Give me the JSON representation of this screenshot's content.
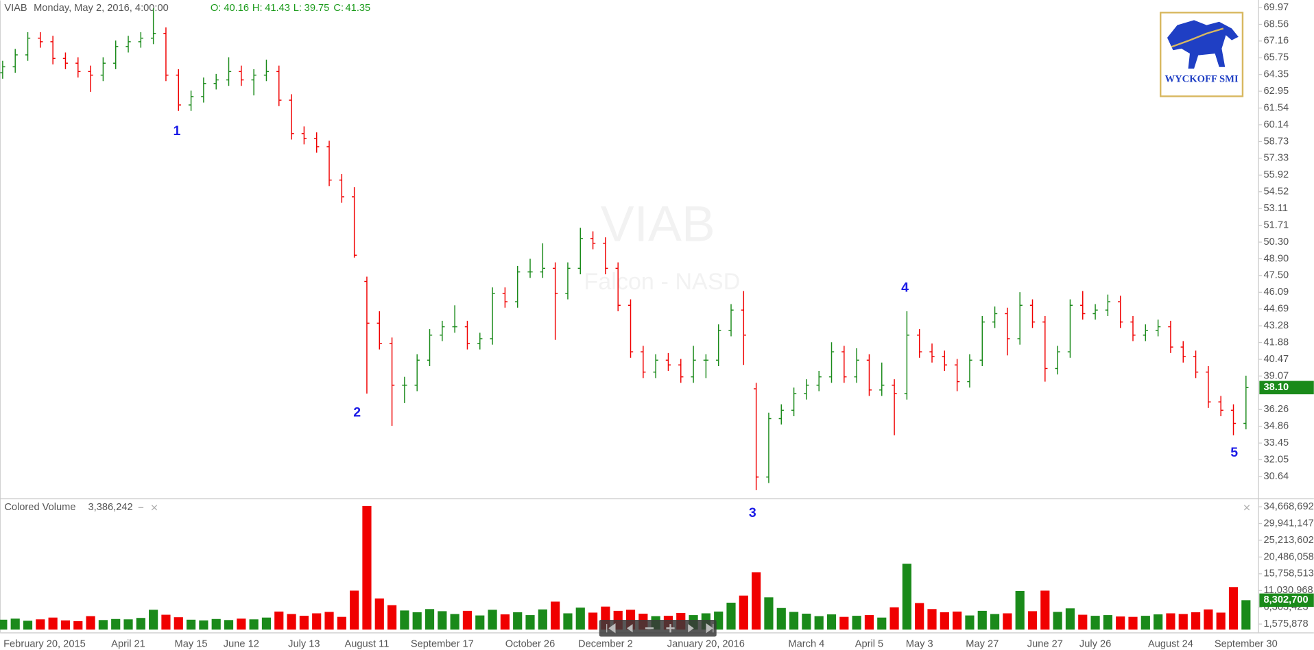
{
  "header": {
    "symbol": "VIAB",
    "datetime": "Monday, May 2, 2016, 4:00:00",
    "o_label": "O:",
    "open": 40.16,
    "h_label": "H:",
    "high": 41.43,
    "l_label": "L:",
    "low": 39.75,
    "c_label": "C:",
    "close": 41.35
  },
  "logo": {
    "text": "WYCKOFF SMI"
  },
  "chart_data": [
    {
      "type": "ohlc",
      "watermark": "VIAB",
      "watermark_sub": "Falcon - NASD",
      "up_color": "#1a8a1a",
      "down_color": "#f00000",
      "categories": [
        "February 20, 2015",
        null,
        null,
        null,
        null,
        null,
        null,
        null,
        null,
        null,
        "April 21",
        null,
        null,
        null,
        null,
        "May 15",
        null,
        null,
        null,
        "June 12",
        null,
        null,
        null,
        null,
        "July 13",
        null,
        null,
        null,
        null,
        "August 11",
        null,
        null,
        null,
        null,
        null,
        "September 17",
        null,
        null,
        null,
        null,
        null,
        null,
        "October 26",
        null,
        null,
        null,
        null,
        null,
        "December 2",
        null,
        null,
        null,
        null,
        null,
        null,
        null,
        "January 20, 2016",
        null,
        null,
        null,
        null,
        null,
        null,
        null,
        "March 4",
        null,
        null,
        null,
        null,
        "April 5",
        null,
        null,
        null,
        "May 3",
        null,
        null,
        null,
        null,
        "May 27",
        null,
        null,
        null,
        null,
        "June 27",
        null,
        null,
        null,
        "July 26",
        null,
        null,
        null,
        null,
        null,
        "August 24",
        null,
        null,
        null,
        null,
        null,
        "September 30"
      ],
      "ohlc": [
        [
          64.5,
          65.5,
          64.0,
          65.0
        ],
        [
          65.0,
          66.5,
          64.5,
          66.0
        ],
        [
          66.0,
          67.9,
          65.5,
          67.4
        ],
        [
          67.4,
          67.9,
          66.6,
          67.1
        ],
        [
          67.1,
          67.6,
          65.2,
          65.7
        ],
        [
          65.7,
          66.2,
          64.8,
          65.3
        ],
        [
          65.3,
          65.8,
          64.1,
          64.6
        ],
        [
          64.6,
          65.1,
          62.9,
          64.3
        ],
        [
          64.3,
          65.8,
          63.8,
          65.3
        ],
        [
          65.3,
          67.2,
          64.8,
          66.7
        ],
        [
          66.7,
          67.6,
          66.2,
          67.1
        ],
        [
          67.1,
          67.9,
          66.6,
          67.4
        ],
        [
          67.4,
          69.9,
          66.9,
          67.8
        ],
        [
          67.8,
          68.3,
          63.8,
          64.3
        ],
        [
          64.3,
          64.8,
          61.3,
          61.8
        ],
        [
          61.8,
          63.0,
          61.3,
          62.5
        ],
        [
          62.5,
          64.1,
          62.0,
          63.6
        ],
        [
          63.6,
          64.4,
          63.1,
          63.9
        ],
        [
          63.9,
          65.8,
          63.4,
          64.6
        ],
        [
          64.6,
          65.1,
          63.4,
          63.9
        ],
        [
          63.9,
          64.8,
          62.6,
          64.3
        ],
        [
          64.3,
          65.6,
          63.8,
          64.6
        ],
        [
          64.6,
          65.1,
          61.7,
          62.2
        ],
        [
          62.2,
          62.7,
          58.9,
          59.4
        ],
        [
          59.4,
          60.0,
          58.5,
          59.0
        ],
        [
          59.0,
          59.5,
          57.8,
          58.3
        ],
        [
          58.3,
          58.8,
          55.0,
          55.5
        ],
        [
          55.5,
          56.0,
          53.6,
          54.1
        ],
        [
          54.1,
          54.9,
          49.0,
          49.2
        ],
        [
          47.0,
          47.4,
          37.6,
          43.5
        ],
        [
          43.5,
          44.5,
          41.3,
          41.8
        ],
        [
          41.8,
          42.3,
          34.9,
          38.3
        ],
        [
          38.3,
          39.0,
          36.8,
          38.3
        ],
        [
          38.3,
          40.9,
          37.8,
          40.4
        ],
        [
          40.4,
          43.0,
          39.9,
          42.5
        ],
        [
          42.5,
          43.7,
          42.0,
          43.2
        ],
        [
          43.2,
          45.0,
          42.7,
          43.2
        ],
        [
          43.2,
          43.7,
          41.3,
          41.8
        ],
        [
          41.8,
          42.7,
          41.3,
          42.2
        ],
        [
          42.2,
          46.5,
          41.7,
          46.0
        ],
        [
          46.0,
          46.5,
          44.8,
          45.3
        ],
        [
          45.3,
          48.3,
          44.8,
          47.8
        ],
        [
          47.8,
          48.9,
          47.3,
          47.8
        ],
        [
          47.8,
          50.2,
          47.3,
          48.1
        ],
        [
          48.1,
          48.6,
          42.1,
          46.0
        ],
        [
          46.0,
          48.6,
          45.5,
          48.1
        ],
        [
          48.1,
          51.5,
          47.6,
          50.6
        ],
        [
          50.6,
          51.2,
          49.7,
          50.2
        ],
        [
          50.2,
          50.7,
          47.6,
          48.1
        ],
        [
          48.1,
          48.6,
          44.5,
          45.0
        ],
        [
          45.0,
          45.5,
          40.6,
          41.1
        ],
        [
          41.1,
          41.6,
          38.9,
          39.4
        ],
        [
          39.4,
          40.9,
          38.9,
          40.4
        ],
        [
          40.4,
          41.0,
          39.5,
          40.0
        ],
        [
          40.0,
          40.5,
          38.5,
          39.0
        ],
        [
          39.0,
          41.6,
          38.5,
          40.4
        ],
        [
          40.4,
          40.9,
          38.9,
          40.4
        ],
        [
          40.4,
          43.4,
          39.9,
          42.9
        ],
        [
          42.9,
          45.1,
          42.4,
          44.6
        ],
        [
          44.6,
          46.2,
          40.0,
          42.5
        ],
        [
          38.0,
          38.5,
          29.5,
          30.6
        ],
        [
          30.6,
          36.0,
          30.1,
          35.5
        ],
        [
          35.5,
          36.7,
          35.0,
          36.2
        ],
        [
          36.2,
          38.1,
          35.7,
          37.6
        ],
        [
          37.6,
          38.8,
          37.1,
          38.3
        ],
        [
          38.3,
          39.5,
          37.8,
          39.0
        ],
        [
          39.0,
          41.9,
          38.5,
          41.1
        ],
        [
          41.1,
          41.6,
          38.5,
          39.0
        ],
        [
          39.0,
          41.4,
          38.5,
          40.4
        ],
        [
          40.4,
          40.9,
          37.4,
          37.9
        ],
        [
          37.9,
          40.2,
          37.4,
          38.3
        ],
        [
          38.3,
          38.8,
          34.1,
          37.6
        ],
        [
          37.6,
          44.5,
          37.1,
          42.5
        ],
        [
          42.5,
          43.0,
          40.6,
          41.1
        ],
        [
          41.1,
          41.8,
          40.2,
          40.7
        ],
        [
          40.7,
          41.2,
          39.5,
          40.0
        ],
        [
          40.0,
          40.5,
          37.8,
          38.6
        ],
        [
          38.6,
          40.9,
          38.1,
          40.4
        ],
        [
          40.4,
          44.1,
          39.9,
          43.6
        ],
        [
          43.6,
          44.9,
          43.1,
          44.3
        ],
        [
          44.3,
          44.8,
          40.8,
          42.2
        ],
        [
          42.2,
          46.1,
          41.7,
          45.0
        ],
        [
          45.0,
          45.5,
          43.1,
          43.6
        ],
        [
          43.6,
          44.1,
          38.6,
          39.7
        ],
        [
          39.7,
          41.6,
          39.2,
          41.1
        ],
        [
          41.1,
          45.5,
          40.6,
          45.0
        ],
        [
          45.0,
          46.2,
          43.8,
          44.3
        ],
        [
          44.3,
          45.1,
          43.8,
          44.6
        ],
        [
          44.6,
          45.9,
          44.1,
          45.3
        ],
        [
          45.3,
          45.8,
          43.1,
          43.6
        ],
        [
          43.6,
          44.1,
          42.0,
          42.5
        ],
        [
          42.5,
          43.4,
          42.0,
          42.9
        ],
        [
          42.9,
          43.8,
          42.4,
          43.2
        ],
        [
          43.2,
          43.7,
          41.0,
          41.5
        ],
        [
          41.5,
          42.0,
          40.2,
          40.7
        ],
        [
          40.7,
          41.2,
          38.9,
          39.4
        ],
        [
          39.4,
          39.9,
          36.4,
          36.9
        ],
        [
          36.9,
          37.4,
          35.7,
          36.2
        ],
        [
          36.2,
          36.7,
          34.1,
          35.1
        ],
        [
          35.1,
          39.1,
          34.6,
          38.1
        ]
      ],
      "ylim": [
        28.81,
        70.6
      ],
      "yticks": [
        69.97,
        68.56,
        67.16,
        65.75,
        64.35,
        62.95,
        61.54,
        60.14,
        58.73,
        57.33,
        55.92,
        54.52,
        53.11,
        51.71,
        {
          "value": 50.3,
          "label": "50.30"
        },
        {
          "value": 48.9,
          "label": "48.90"
        },
        {
          "value": 47.5,
          "label": "47.50"
        },
        46.09,
        44.69,
        43.28,
        41.88,
        40.47,
        39.07,
        36.26,
        34.86,
        33.45,
        32.05,
        30.64
      ],
      "last": {
        "value": 38.1,
        "label": "38.10"
      },
      "annotations": [
        "1",
        "2",
        "3",
        "4",
        "5"
      ]
    },
    {
      "type": "bar",
      "title": "Colored Volume",
      "legend_value": "3,386,242",
      "values": [
        2800000,
        3100000,
        2500000,
        2900000,
        3400000,
        2600000,
        2400000,
        3800000,
        2700000,
        3000000,
        2900000,
        3300000,
        5600000,
        4200000,
        3500000,
        2800000,
        2600000,
        3000000,
        2700000,
        3100000,
        2900000,
        3400000,
        5100000,
        4400000,
        3900000,
        4600000,
        5000000,
        3600000,
        11000000,
        34900000,
        8800000,
        6900000,
        5400000,
        4900000,
        5800000,
        5200000,
        4400000,
        5300000,
        4000000,
        5600000,
        4300000,
        4900000,
        4100000,
        5700000,
        7900000,
        4600000,
        6200000,
        4800000,
        6500000,
        5300000,
        5600000,
        4500000,
        3800000,
        3900000,
        4700000,
        4100000,
        4600000,
        5100000,
        7600000,
        9600000,
        16200000,
        9100000,
        6100000,
        5000000,
        4500000,
        3800000,
        4300000,
        3600000,
        3900000,
        4100000,
        3400000,
        6300000,
        18600000,
        7500000,
        5800000,
        4900000,
        5100000,
        4000000,
        5300000,
        4400000,
        4600000,
        10900000,
        5200000,
        11000000,
        5000000,
        6000000,
        4200000,
        3900000,
        4100000,
        3700000,
        3600000,
        3900000,
        4300000,
        4600000,
        4400000,
        4900000,
        5700000,
        4800000,
        12000000,
        8302700
      ],
      "ylim": [
        -787894,
        36559710
      ],
      "yticks": [
        {
          "value": 34668692,
          "label": "34,668,692"
        },
        {
          "value": 29941147,
          "label": "29,941,147"
        },
        {
          "value": 25213602,
          "label": "25,213,602"
        },
        {
          "value": 20486058,
          "label": "20,486,058"
        },
        {
          "value": 15758513,
          "label": "15,758,513"
        },
        {
          "value": 11030968,
          "label": "11,030,968"
        },
        {
          "value": 6303423,
          "label": "6,303,423"
        },
        {
          "value": 1575878,
          "label": "1,575,878"
        }
      ],
      "last": {
        "value": 8302700,
        "label": "8,302,700"
      }
    }
  ]
}
